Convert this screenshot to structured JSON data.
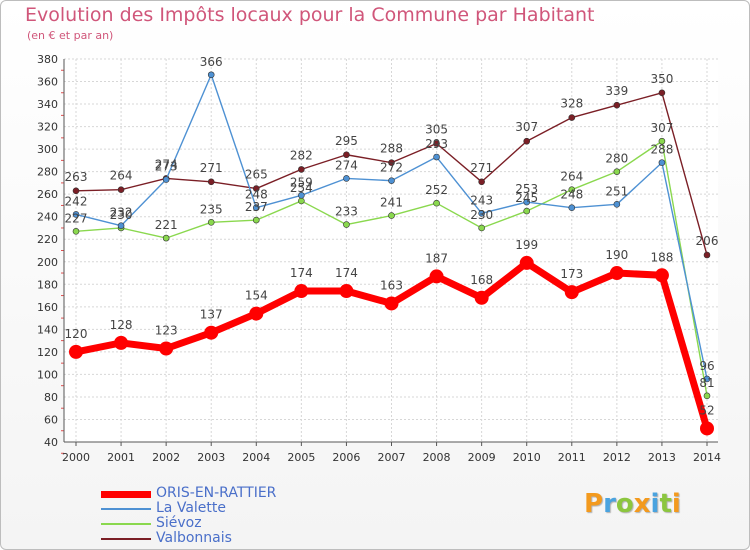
{
  "title": "Evolution des Impôts locaux pour la Commune par Habitant",
  "subtitle": "(en € et par an)",
  "logo_text": "Proxiti",
  "chart_data": {
    "type": "line",
    "x": [
      "2000",
      "2001",
      "2002",
      "2003",
      "2004",
      "2005",
      "2006",
      "2007",
      "2008",
      "2009",
      "2010",
      "2011",
      "2012",
      "2013",
      "2014"
    ],
    "ylim": [
      40,
      380
    ],
    "yticks": [
      40,
      60,
      80,
      100,
      120,
      140,
      160,
      180,
      200,
      220,
      240,
      260,
      280,
      300,
      320,
      340,
      360,
      380
    ],
    "grid": true,
    "legend_position": "bottom-left",
    "series": [
      {
        "name": "ORIS-EN-RATTIER",
        "color": "#ff0000",
        "values": [
          120,
          128,
          123,
          137,
          154,
          174,
          174,
          163,
          187,
          168,
          199,
          173,
          190,
          188,
          52
        ],
        "labels": [
          "120",
          "128",
          "123",
          "137",
          "154",
          "174",
          "174",
          "163",
          "187",
          "168",
          "199",
          "173",
          "190",
          "188",
          "52"
        ]
      },
      {
        "name": "La Valette",
        "color": "#4e91d3",
        "values": [
          242,
          232,
          273,
          366,
          248,
          259,
          274,
          272,
          293,
          243,
          253,
          248,
          251,
          288,
          96
        ],
        "labels": [
          "242",
          "232",
          "273",
          "366",
          "248",
          "259",
          "274",
          "272",
          "293",
          "243",
          "253",
          "248",
          "251",
          "288",
          "96"
        ]
      },
      {
        "name": "Siévoz",
        "color": "#8ad84e",
        "values": [
          227,
          230,
          221,
          235,
          237,
          254,
          233,
          241,
          252,
          230,
          245,
          264,
          280,
          307,
          81
        ],
        "labels": [
          "227",
          "230",
          "221",
          "235",
          "237",
          "254",
          "233",
          "241",
          "252",
          "230",
          "245",
          "264",
          "280",
          "307",
          "81"
        ]
      },
      {
        "name": "Valbonnais",
        "color": "#7b1f26",
        "values": [
          263,
          264,
          274,
          271,
          265,
          282,
          295,
          288,
          305,
          271,
          307,
          328,
          339,
          350,
          206
        ],
        "labels": [
          "263",
          "264",
          "274",
          "271",
          "265",
          "282",
          "295",
          "288",
          "305",
          "271",
          "307",
          "328",
          "339",
          "350",
          "206"
        ]
      }
    ]
  }
}
